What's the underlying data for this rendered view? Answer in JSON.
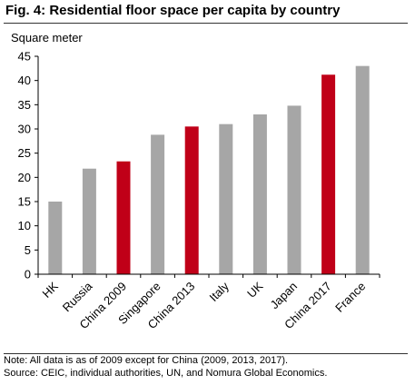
{
  "title": "Fig. 4: Residential floor space per capita by country",
  "note": "Note: All data is as of 2009 except for China (2009, 2013, 2017).",
  "source": "Source: CEIC, individual authorities, UN, and Nomura Global Economics.",
  "colors": {
    "bar_default": "#a6a6a6",
    "bar_highlight": "#c00018",
    "title_rule": "#333333"
  },
  "chart_data": {
    "type": "bar",
    "ylabel": "Square meter",
    "xlabel": "",
    "ylim": [
      0,
      45
    ],
    "yticks": [
      0,
      5,
      10,
      15,
      20,
      25,
      30,
      35,
      40,
      45
    ],
    "grid": false,
    "legend": "none",
    "categories": [
      "HK",
      "Russia",
      "China 2009",
      "Singapore",
      "China 2013",
      "Italy",
      "UK",
      "Japan",
      "China 2017",
      "France"
    ],
    "values": [
      15,
      21.8,
      23.3,
      28.8,
      30.5,
      31,
      33,
      34.8,
      41.2,
      43
    ],
    "highlight": [
      false,
      false,
      true,
      false,
      true,
      false,
      false,
      false,
      true,
      false
    ]
  }
}
